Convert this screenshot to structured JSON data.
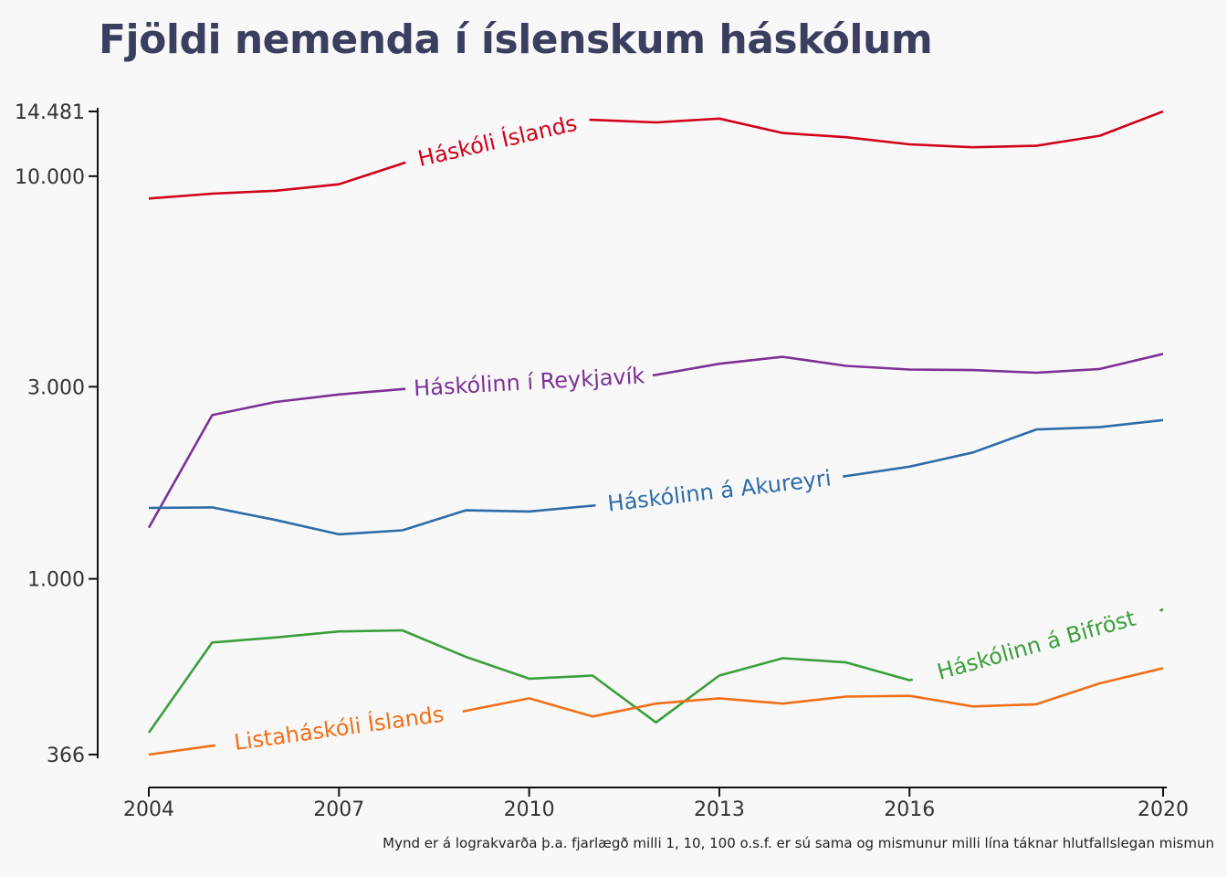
{
  "chart_data": {
    "type": "line",
    "title": "Fjöldi nemenda í íslenskum háskólum",
    "caption": "Mynd er á lograkvarða þ.a. fjarlægð milli 1, 10, 100 o.s.f. er sú sama og mismunur milli lína táknar hlutfallslegan mismun",
    "xlabel": "",
    "ylabel": "",
    "yscale": "log",
    "xlim": [
      2004,
      2020
    ],
    "ylim": [
      366,
      14481
    ],
    "x_ticks": [
      2004,
      2007,
      2010,
      2013,
      2016,
      2020
    ],
    "x_tick_labels": [
      "2004",
      "2007",
      "2010",
      "2013",
      "2016",
      "2020"
    ],
    "y_ticks": [
      366,
      1000,
      3000,
      10000,
      14481
    ],
    "y_tick_labels": [
      "366",
      "1.000",
      "3.000",
      "10.000",
      "14.481"
    ],
    "grid": false,
    "legend": "direct labels on lines",
    "x": [
      2004,
      2005,
      2006,
      2007,
      2008,
      2009,
      2010,
      2011,
      2012,
      2013,
      2014,
      2015,
      2016,
      2017,
      2018,
      2019,
      2020
    ],
    "series": [
      {
        "name": "Háskóli Íslands",
        "color": "#d0021b",
        "values": [
          8800,
          9050,
          9200,
          9550,
          10750,
          12350,
          13800,
          13800,
          13600,
          13900,
          12800,
          12500,
          12000,
          11800,
          11900,
          12600,
          14481
        ]
      },
      {
        "name": "Háskólinn í Reykjavík",
        "color": "#7b3294",
        "values": [
          1340,
          2550,
          2750,
          2870,
          2960,
          2980,
          3020,
          3090,
          3210,
          3420,
          3560,
          3380,
          3310,
          3300,
          3250,
          3320,
          3620
        ]
      },
      {
        "name": "Háskólinn á Akureyri",
        "color": "#2d6ca8",
        "values": [
          1500,
          1505,
          1400,
          1290,
          1320,
          1480,
          1470,
          1520,
          1560,
          1600,
          1680,
          1800,
          1900,
          2060,
          2350,
          2380,
          2480
        ]
      },
      {
        "name": "Háskólinn á Bifröst",
        "color": "#3a9f3a",
        "values": [
          415,
          695,
          715,
          740,
          745,
          640,
          565,
          575,
          440,
          575,
          635,
          620,
          560,
          600,
          655,
          720,
          840
        ]
      },
      {
        "name": "Listaháskóli Íslands",
        "color": "#f07018",
        "values": [
          366,
          385,
          400,
          430,
          440,
          470,
          505,
          455,
          490,
          505,
          490,
          510,
          512,
          482,
          488,
          550,
          600
        ]
      }
    ]
  }
}
